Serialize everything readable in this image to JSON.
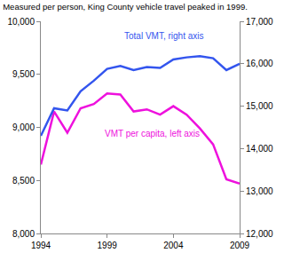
{
  "chart_data": {
    "type": "line",
    "title": "Measured per person, King County vehicle travel peaked in 1999.",
    "x": [
      1994,
      1995,
      1996,
      1997,
      1998,
      1999,
      2000,
      2001,
      2002,
      2003,
      2004,
      2005,
      2006,
      2007,
      2008,
      2009
    ],
    "series": [
      {
        "name": "Total VMT, right axis",
        "color": "#3355ee",
        "axis": "y2",
        "values": [
          14300,
          14950,
          14900,
          15350,
          15600,
          15880,
          15950,
          15850,
          15920,
          15900,
          16100,
          16150,
          16180,
          16130,
          15850,
          16000
        ]
      },
      {
        "name": "VMT per capita, left axis",
        "color": "#ee11dd",
        "values": [
          8650,
          9150,
          8950,
          9180,
          9220,
          9320,
          9310,
          9150,
          9170,
          9120,
          9200,
          9120,
          8990,
          8840,
          8510,
          8470
        ]
      }
    ],
    "xlim": [
      1994,
      2009
    ],
    "xticks": [
      1994,
      1999,
      2004,
      2009
    ],
    "ylim": [
      8000,
      10000
    ],
    "yticks": [
      {
        "value": 8000,
        "label": "8,000"
      },
      {
        "value": 8500,
        "label": "8,500"
      },
      {
        "value": 9000,
        "label": "9,000"
      },
      {
        "value": 9500,
        "label": "9,500"
      },
      {
        "value": 10000,
        "label": "10,000"
      }
    ],
    "y2lim": [
      12000,
      17000
    ],
    "y2ticks": [
      {
        "value": 12000,
        "label": "12,000"
      },
      {
        "value": 13000,
        "label": "13,000"
      },
      {
        "value": 14000,
        "label": "14,000"
      },
      {
        "value": 15000,
        "label": "15,000"
      },
      {
        "value": 16000,
        "label": "16,000"
      },
      {
        "value": 17000,
        "label": "17,000"
      }
    ],
    "grid": false
  }
}
